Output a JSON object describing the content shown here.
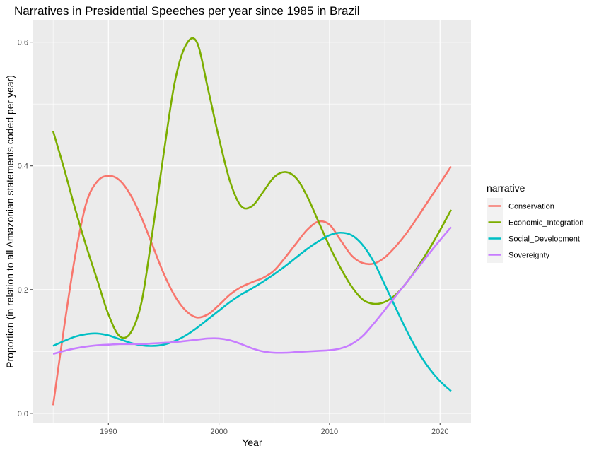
{
  "chart_data": {
    "type": "line",
    "title": "Narratives in Presidential Speeches per year since 1985 in Brazil",
    "xlabel": "Year",
    "ylabel": "Proportion (in relation to all Amazonian statements coded per year)",
    "xlim": [
      1983.2,
      2022.8
    ],
    "ylim": [
      -0.015,
      0.635
    ],
    "x_ticks": [
      1990,
      2000,
      2010,
      2020
    ],
    "y_ticks": [
      0.0,
      0.2,
      0.4,
      0.6
    ],
    "x_tick_labels": [
      "1990",
      "2000",
      "2010",
      "2020"
    ],
    "y_tick_labels": [
      "0.0",
      "0.2",
      "0.4",
      "0.6"
    ],
    "grid": true,
    "legend": {
      "title": "narrative",
      "position": "right"
    },
    "series": [
      {
        "name": "Conservation",
        "color": "#F8766D",
        "x": [
          1985,
          1986,
          1987,
          1988,
          1989,
          1990,
          1991,
          1992,
          1993,
          1994,
          1995,
          1996,
          1997,
          1998,
          1999,
          2000,
          2001,
          2002,
          2003,
          2004,
          2005,
          2006,
          2007,
          2008,
          2009,
          2010,
          2011,
          2012,
          2013,
          2014,
          2015,
          2016,
          2017,
          2018,
          2019,
          2020,
          2021
        ],
        "y": [
          0.013,
          0.14,
          0.255,
          0.34,
          0.375,
          0.384,
          0.377,
          0.353,
          0.316,
          0.271,
          0.226,
          0.19,
          0.166,
          0.155,
          0.16,
          0.175,
          0.192,
          0.204,
          0.212,
          0.219,
          0.231,
          0.252,
          0.275,
          0.297,
          0.31,
          0.305,
          0.28,
          0.255,
          0.243,
          0.242,
          0.252,
          0.27,
          0.292,
          0.318,
          0.345,
          0.372,
          0.399
        ]
      },
      {
        "name": "Economic_Integration",
        "color": "#7CAE00",
        "x": [
          1985,
          1986,
          1987,
          1988,
          1989,
          1990,
          1991,
          1992,
          1993,
          1994,
          1995,
          1996,
          1997,
          1998,
          1999,
          2000,
          2001,
          2002,
          2003,
          2004,
          2005,
          2006,
          2007,
          2008,
          2009,
          2010,
          2011,
          2012,
          2013,
          2014,
          2015,
          2016,
          2017,
          2018,
          2019,
          2020,
          2021
        ],
        "y": [
          0.456,
          0.395,
          0.33,
          0.27,
          0.215,
          0.16,
          0.125,
          0.13,
          0.18,
          0.295,
          0.42,
          0.535,
          0.595,
          0.6,
          0.525,
          0.445,
          0.375,
          0.335,
          0.335,
          0.358,
          0.382,
          0.39,
          0.38,
          0.35,
          0.31,
          0.27,
          0.235,
          0.205,
          0.184,
          0.177,
          0.18,
          0.192,
          0.212,
          0.237,
          0.265,
          0.296,
          0.329
        ]
      },
      {
        "name": "Social_Development",
        "color": "#00BFC4",
        "x": [
          1985,
          1986,
          1987,
          1988,
          1989,
          1990,
          1991,
          1992,
          1993,
          1994,
          1995,
          1996,
          1997,
          1998,
          1999,
          2000,
          2001,
          2002,
          2003,
          2004,
          2005,
          2006,
          2007,
          2008,
          2009,
          2010,
          2011,
          2012,
          2013,
          2014,
          2015,
          2016,
          2017,
          2018,
          2019,
          2020,
          2021
        ],
        "y": [
          0.109,
          0.117,
          0.124,
          0.128,
          0.129,
          0.126,
          0.12,
          0.114,
          0.11,
          0.109,
          0.111,
          0.117,
          0.126,
          0.138,
          0.152,
          0.166,
          0.18,
          0.192,
          0.202,
          0.213,
          0.225,
          0.238,
          0.252,
          0.266,
          0.278,
          0.288,
          0.292,
          0.288,
          0.272,
          0.245,
          0.208,
          0.17,
          0.133,
          0.1,
          0.073,
          0.052,
          0.036
        ]
      },
      {
        "name": "Sovereignty",
        "color": "#C77CFF",
        "x": [
          1985,
          1986,
          1987,
          1988,
          1989,
          1990,
          1991,
          1992,
          1993,
          1994,
          1995,
          1996,
          1997,
          1998,
          1999,
          2000,
          2001,
          2002,
          2003,
          2004,
          2005,
          2006,
          2007,
          2008,
          2009,
          2010,
          2011,
          2012,
          2013,
          2014,
          2015,
          2016,
          2017,
          2018,
          2019,
          2020,
          2021
        ],
        "y": [
          0.096,
          0.101,
          0.105,
          0.108,
          0.11,
          0.111,
          0.112,
          0.112,
          0.112,
          0.113,
          0.114,
          0.115,
          0.117,
          0.119,
          0.121,
          0.121,
          0.118,
          0.112,
          0.105,
          0.1,
          0.098,
          0.098,
          0.099,
          0.1,
          0.101,
          0.102,
          0.105,
          0.112,
          0.125,
          0.145,
          0.167,
          0.19,
          0.212,
          0.235,
          0.258,
          0.28,
          0.301
        ]
      }
    ]
  }
}
